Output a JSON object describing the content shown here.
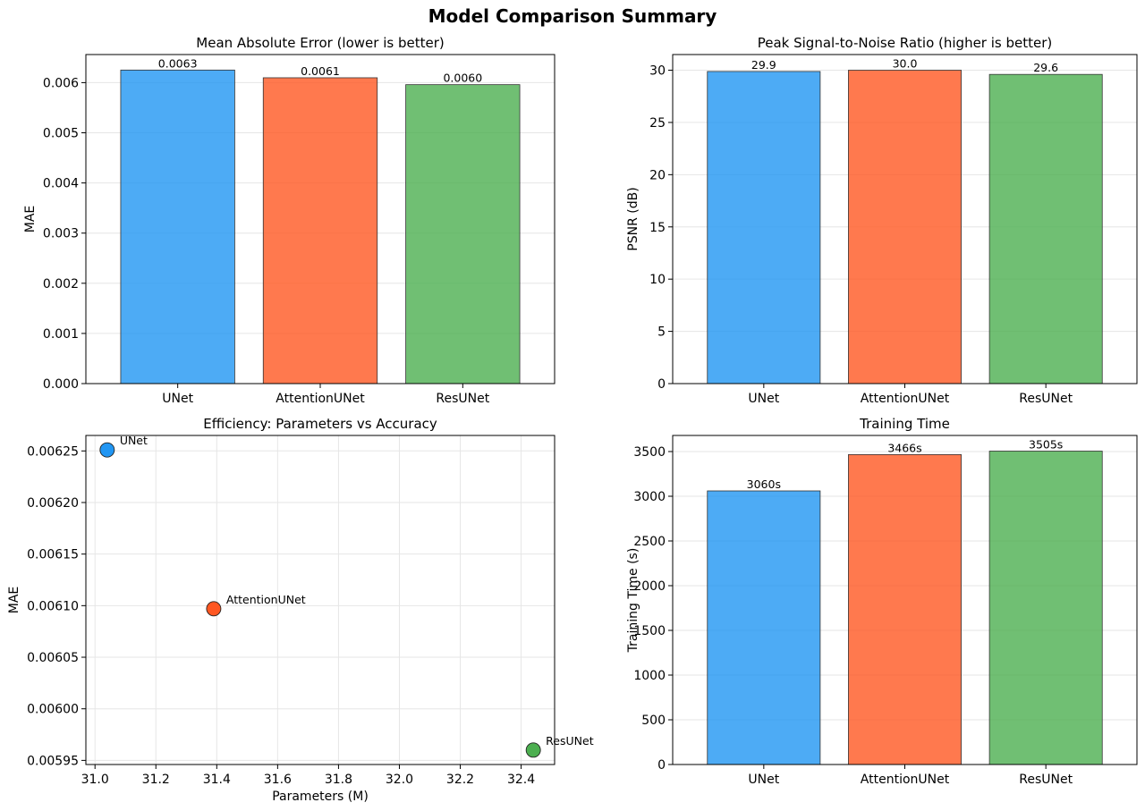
{
  "title": "Model Comparison Summary",
  "colors": {
    "UNet": "#2196F3",
    "AttentionUNet": "#FF5722",
    "ResUNet": "#4CAF50",
    "grid": "#e6e6e6",
    "axis": "#000000"
  },
  "chart_data": [
    {
      "id": "mae",
      "type": "bar",
      "title": "Mean Absolute Error (lower is better)",
      "xlabel": "",
      "ylabel": "MAE",
      "categories": [
        "UNet",
        "AttentionUNet",
        "ResUNet"
      ],
      "values": [
        0.006251,
        0.006097,
        0.00596
      ],
      "value_labels": [
        "0.0063",
        "0.0061",
        "0.0060"
      ],
      "ylim": [
        0,
        0.00656
      ],
      "yticks": [
        0.0,
        0.001,
        0.002,
        0.003,
        0.004,
        0.005,
        0.006
      ],
      "ytick_labels": [
        "0.000",
        "0.001",
        "0.002",
        "0.003",
        "0.004",
        "0.005",
        "0.006"
      ],
      "grid": "y"
    },
    {
      "id": "psnr",
      "type": "bar",
      "title": "Peak Signal-to-Noise Ratio (higher is better)",
      "xlabel": "",
      "ylabel": "PSNR (dB)",
      "categories": [
        "UNet",
        "AttentionUNet",
        "ResUNet"
      ],
      "values": [
        29.88,
        30.0,
        29.6
      ],
      "value_labels": [
        "29.9",
        "30.0",
        "29.6"
      ],
      "ylim": [
        0,
        31.5
      ],
      "yticks": [
        0,
        5,
        10,
        15,
        20,
        25,
        30
      ],
      "ytick_labels": [
        "0",
        "5",
        "10",
        "15",
        "20",
        "25",
        "30"
      ],
      "grid": "y"
    },
    {
      "id": "efficiency",
      "type": "scatter",
      "title": "Efficiency: Parameters vs Accuracy",
      "xlabel": "Parameters (M)",
      "ylabel": "MAE",
      "points": [
        {
          "label": "UNet",
          "x": 31.04,
          "y": 0.006251
        },
        {
          "label": "AttentionUNet",
          "x": 31.39,
          "y": 0.006097
        },
        {
          "label": "ResUNet",
          "x": 32.44,
          "y": 0.00596
        }
      ],
      "xlim": [
        30.97,
        32.51
      ],
      "ylim": [
        0.005946,
        0.006265
      ],
      "xticks": [
        31.0,
        31.2,
        31.4,
        31.6,
        31.8,
        32.0,
        32.2,
        32.4
      ],
      "xtick_labels": [
        "31.0",
        "31.2",
        "31.4",
        "31.6",
        "31.8",
        "32.0",
        "32.2",
        "32.4"
      ],
      "yticks": [
        0.00595,
        0.006,
        0.00605,
        0.0061,
        0.00615,
        0.0062,
        0.00625
      ],
      "ytick_labels": [
        "0.00595",
        "0.00600",
        "0.00605",
        "0.00610",
        "0.00615",
        "0.00620",
        "0.00625"
      ],
      "grid": "both"
    },
    {
      "id": "training",
      "type": "bar",
      "title": "Training Time",
      "xlabel": "",
      "ylabel": "Training Time (s)",
      "categories": [
        "UNet",
        "AttentionUNet",
        "ResUNet"
      ],
      "values": [
        3060,
        3466,
        3505
      ],
      "value_labels": [
        "3060s",
        "3466s",
        "3505s"
      ],
      "ylim": [
        0,
        3680
      ],
      "yticks": [
        0,
        500,
        1000,
        1500,
        2000,
        2500,
        3000,
        3500
      ],
      "ytick_labels": [
        "0",
        "500",
        "1000",
        "1500",
        "2000",
        "2500",
        "3000",
        "3500"
      ],
      "grid": "y"
    }
  ]
}
